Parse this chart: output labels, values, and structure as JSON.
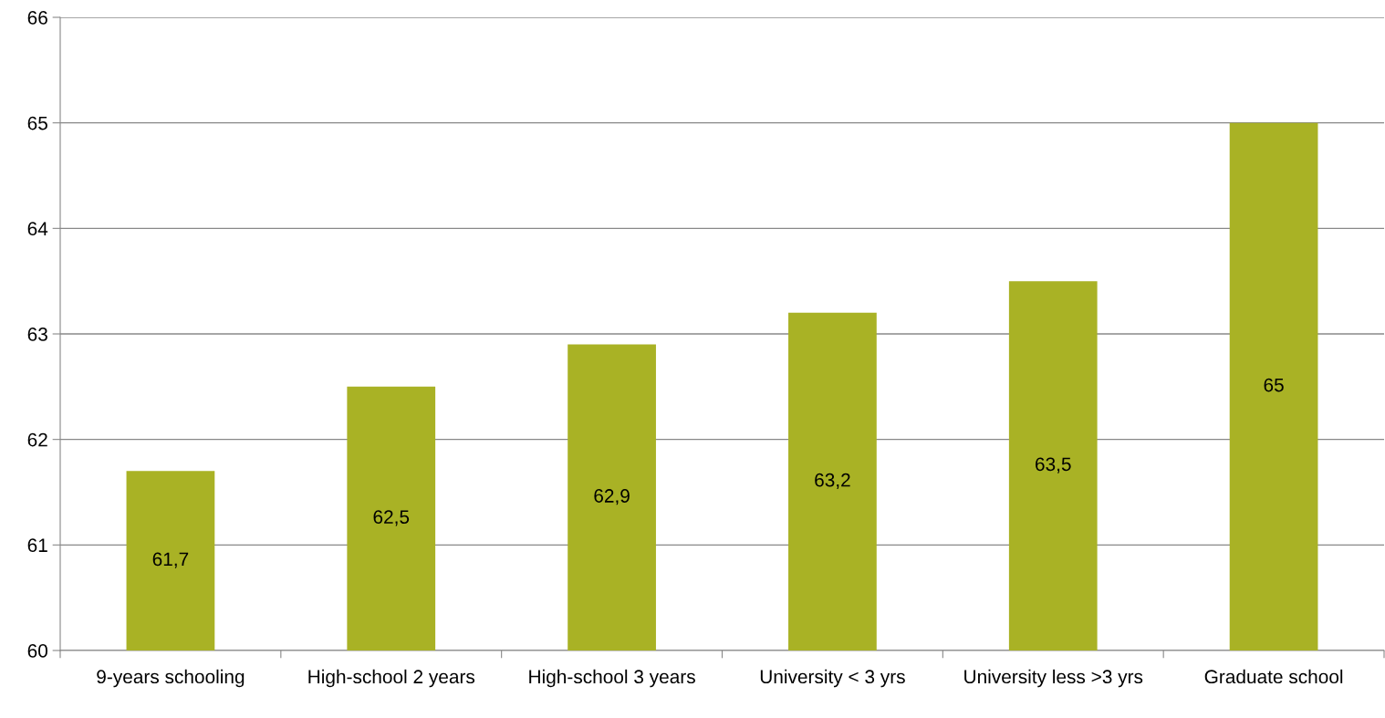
{
  "chart_data": {
    "type": "bar",
    "categories": [
      "9-years schooling",
      "High-school 2 years",
      "High-school 3 years",
      "University < 3 yrs",
      "University less >3 yrs",
      "Graduate school"
    ],
    "values": [
      61.7,
      62.5,
      62.9,
      63.2,
      63.5,
      65
    ],
    "value_labels": [
      "61,7",
      "62,5",
      "62,9",
      "63,2",
      "63,5",
      "65"
    ],
    "color": "#a9b225",
    "ylim": [
      60,
      66
    ],
    "yticks": [
      60,
      61,
      62,
      63,
      64,
      65,
      66
    ],
    "grid": "y",
    "legend": false
  }
}
